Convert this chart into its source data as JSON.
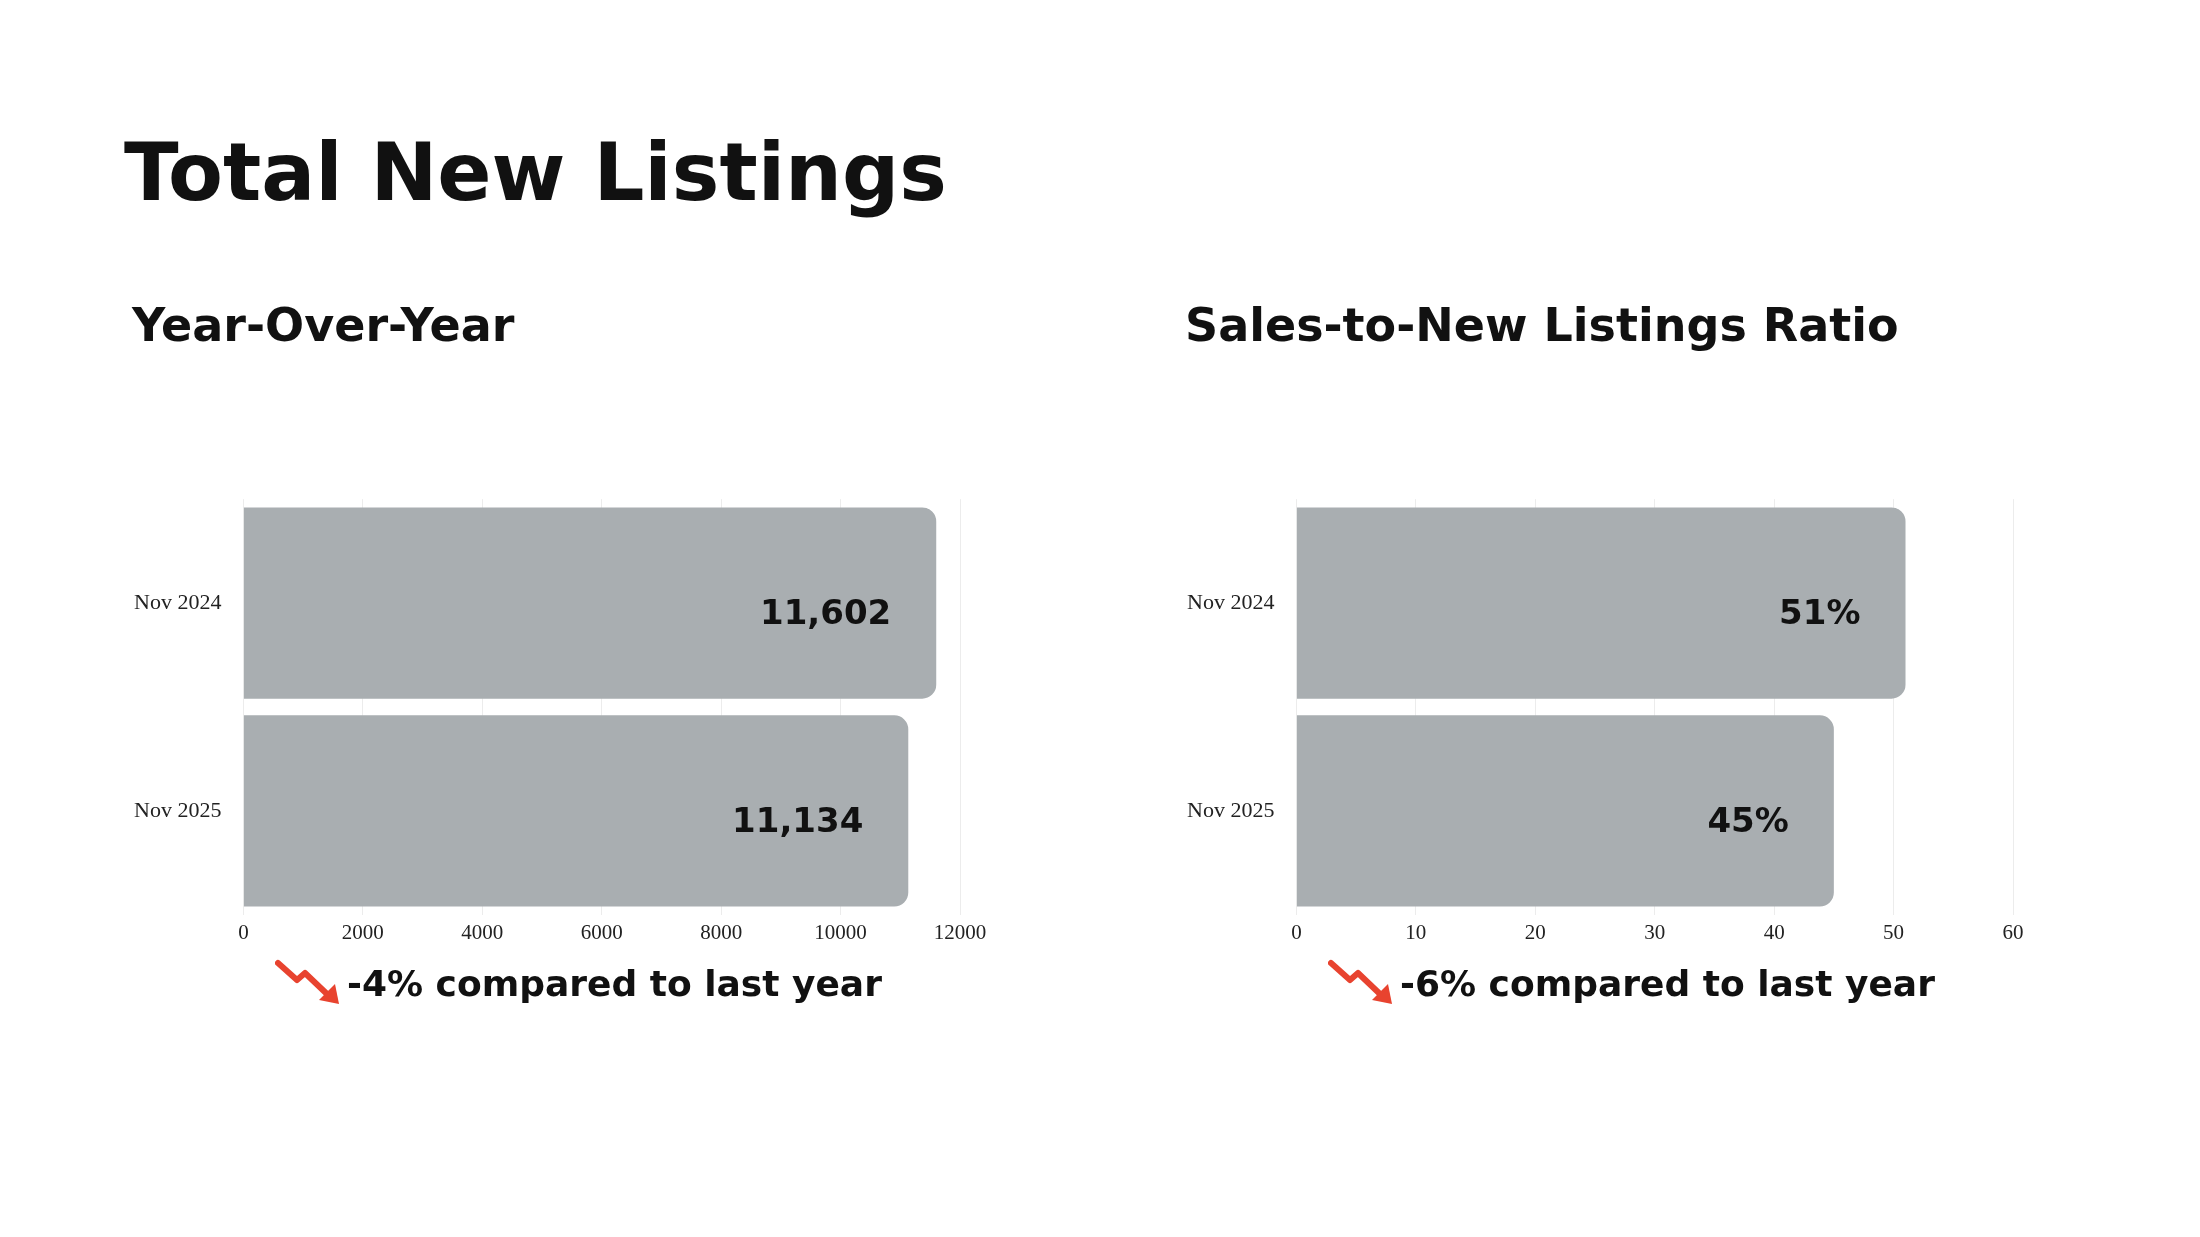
{
  "chart_data": [
    {
      "type": "bar",
      "title": "Total New Listings",
      "subtitle": "Year-Over-Year",
      "orientation": "horizontal",
      "categories": [
        "Nov 2024",
        "Nov 2025"
      ],
      "values": [
        11602,
        11134
      ],
      "value_labels": [
        "11,602",
        "11,134"
      ],
      "color": "#a9aeb1",
      "xlim": [
        0,
        12000
      ],
      "xticks": [
        0,
        2000,
        4000,
        6000,
        8000,
        10000,
        12000
      ],
      "grid": "x",
      "legend": false,
      "annotations": [
        "-4% compared to last year"
      ]
    },
    {
      "type": "bar",
      "subtitle": "Sales-to-New Listings Ratio",
      "orientation": "horizontal",
      "categories": [
        "Nov 2024",
        "Nov 2025"
      ],
      "values": [
        51,
        45
      ],
      "value_labels": [
        "51%",
        "45%"
      ],
      "color": "#a9aeb1",
      "xlim": [
        0,
        60
      ],
      "xticks": [
        0,
        10,
        20,
        30,
        40,
        50,
        60
      ],
      "grid": "x",
      "legend": false,
      "annotations": [
        "-6% compared to last year"
      ]
    }
  ]
}
